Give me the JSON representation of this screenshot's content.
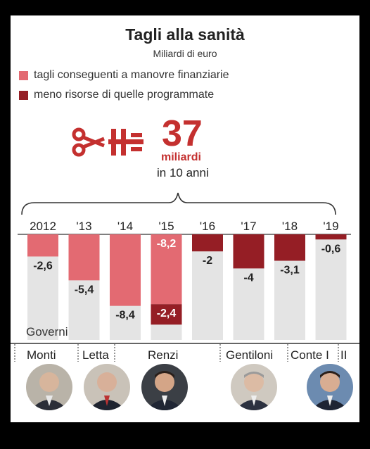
{
  "title": "Tagli alla sanità",
  "subtitle": "Miliardi di euro",
  "legend": [
    {
      "label": "tagli conseguenti a manovre finanziarie",
      "color": "#e36a72"
    },
    {
      "label": "meno risorse di quelle programmate",
      "color": "#951e25"
    }
  ],
  "headline": {
    "value": "37",
    "unit": "miliardi",
    "period": "in 10 anni"
  },
  "chart_data": {
    "type": "bar",
    "orientation": "downward",
    "categories": [
      "2012",
      "'13",
      "'14",
      "'15",
      "'16",
      "'17",
      "'18",
      "'19"
    ],
    "series": [
      {
        "name": "tagli conseguenti a manovre finanziarie",
        "color": "#e36a72",
        "values": [
          -2.6,
          -5.4,
          -8.4,
          -8.2,
          0,
          0,
          0,
          0
        ]
      },
      {
        "name": "meno risorse di quelle programmate",
        "color": "#951e25",
        "values": [
          0,
          0,
          0,
          -2.4,
          -2,
          -4,
          -3.1,
          -0.6
        ]
      }
    ],
    "value_labels": [
      "-2,6",
      "-5,4",
      "-8,4",
      "-8,2",
      "-2,4",
      "-2",
      "-4",
      "-3,1",
      "-0,6"
    ],
    "ylim": [
      -11.5,
      0
    ],
    "grid": false
  },
  "governments": {
    "label": "Governi",
    "names": [
      "Monti",
      "Letta",
      "Renzi",
      "Gentiloni",
      "Conte I",
      "II"
    ]
  }
}
